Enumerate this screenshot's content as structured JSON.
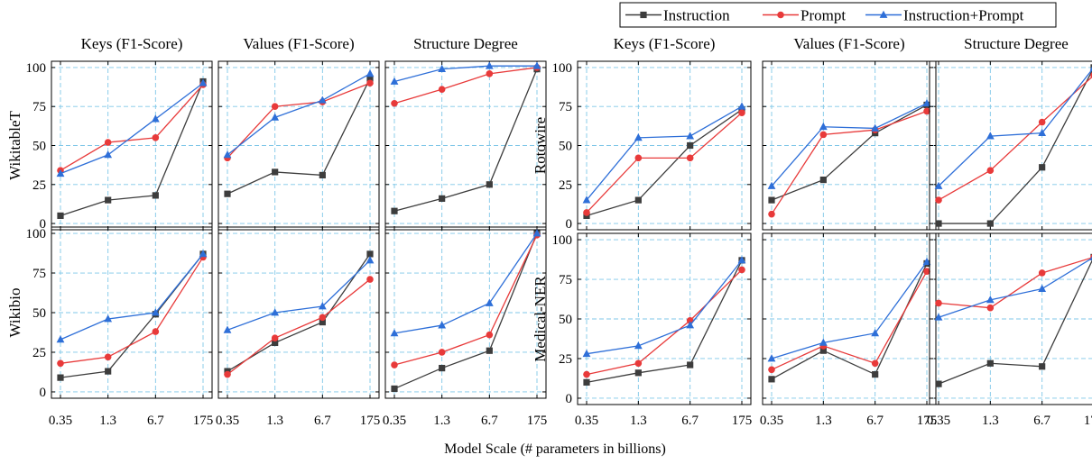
{
  "chart_data": {
    "type": "line",
    "xlabel": "Model Scale (# parameters in billions)",
    "x_categories": [
      "0.35",
      "1.3",
      "6.7",
      "175"
    ],
    "y_ticks": [
      0,
      25,
      50,
      75,
      100
    ],
    "ylim": [
      -4,
      104
    ],
    "grid": true,
    "legend": {
      "placement": "top-right",
      "entries": [
        {
          "name": "Instruction",
          "color": "#3d3d3d",
          "marker": "square"
        },
        {
          "name": "Prompt",
          "color": "#e83a3a",
          "marker": "circle"
        },
        {
          "name": "Instruction+Prompt",
          "color": "#2e6fd8",
          "marker": "triangle"
        }
      ]
    },
    "column_titles": [
      "Keys (F1-Score)",
      "Values (F1-Score)",
      "Structure Degree"
    ],
    "groups": [
      {
        "rows": [
          {
            "label": "WikitableT",
            "panels": [
              {
                "title": "Keys (F1-Score)",
                "series": [
                  [
                    5,
                    15,
                    18,
                    91
                  ],
                  [
                    34,
                    52,
                    55,
                    89
                  ],
                  [
                    32,
                    44,
                    67,
                    90
                  ]
                ]
              },
              {
                "title": "Values (F1-Score)",
                "series": [
                  [
                    19,
                    33,
                    31,
                    93
                  ],
                  [
                    42,
                    75,
                    78,
                    90
                  ],
                  [
                    44,
                    68,
                    79,
                    96
                  ]
                ]
              },
              {
                "title": "Structure Degree",
                "series": [
                  [
                    8,
                    16,
                    25,
                    99
                  ],
                  [
                    77,
                    86,
                    96,
                    100
                  ],
                  [
                    91,
                    99,
                    101,
                    101
                  ]
                ]
              }
            ]
          },
          {
            "label": "Wikibio",
            "panels": [
              {
                "title": "Keys (F1-Score)",
                "series": [
                  [
                    9,
                    13,
                    49,
                    87
                  ],
                  [
                    18,
                    22,
                    38,
                    85
                  ],
                  [
                    33,
                    46,
                    50,
                    87
                  ]
                ]
              },
              {
                "title": "Values (F1-Score)",
                "series": [
                  [
                    13,
                    31,
                    44,
                    87
                  ],
                  [
                    11,
                    34,
                    47,
                    71
                  ],
                  [
                    39,
                    50,
                    54,
                    83
                  ]
                ]
              },
              {
                "title": "Structure Degree",
                "series": [
                  [
                    2,
                    15,
                    26,
                    100
                  ],
                  [
                    17,
                    25,
                    36,
                    99
                  ],
                  [
                    37,
                    42,
                    56,
                    100
                  ]
                ]
              }
            ]
          }
        ]
      },
      {
        "rows": [
          {
            "label": "Rotowire",
            "panels": [
              {
                "title": "Keys (F1-Score)",
                "series": [
                  [
                    5,
                    15,
                    50,
                    73
                  ],
                  [
                    7,
                    42,
                    42,
                    71
                  ],
                  [
                    15,
                    55,
                    56,
                    75
                  ]
                ]
              },
              {
                "title": "Values (F1-Score)",
                "series": [
                  [
                    15,
                    28,
                    58,
                    76
                  ],
                  [
                    6,
                    57,
                    60,
                    72
                  ],
                  [
                    24,
                    62,
                    61,
                    77
                  ]
                ]
              },
              {
                "title": "Structure Degree",
                "series": [
                  [
                    0,
                    0,
                    36,
                    100
                  ],
                  [
                    15,
                    34,
                    65,
                    95
                  ],
                  [
                    24,
                    56,
                    58,
                    100
                  ]
                ]
              }
            ]
          },
          {
            "label": "Medical-NER",
            "panels": [
              {
                "title": "Keys (F1-Score)",
                "series": [
                  [
                    10,
                    16,
                    21,
                    87
                  ],
                  [
                    15,
                    22,
                    49,
                    81
                  ],
                  [
                    28,
                    33,
                    46,
                    87
                  ]
                ]
              },
              {
                "title": "Values (F1-Score)",
                "series": [
                  [
                    12,
                    30,
                    15,
                    85
                  ],
                  [
                    18,
                    33,
                    22,
                    80
                  ],
                  [
                    25,
                    35,
                    41,
                    86
                  ]
                ]
              },
              {
                "title": "Structure Degree",
                "series": [
                  [
                    9,
                    22,
                    20,
                    89
                  ],
                  [
                    60,
                    57,
                    79,
                    89
                  ],
                  [
                    51,
                    62,
                    69,
                    89
                  ]
                ]
              }
            ]
          }
        ]
      }
    ]
  }
}
